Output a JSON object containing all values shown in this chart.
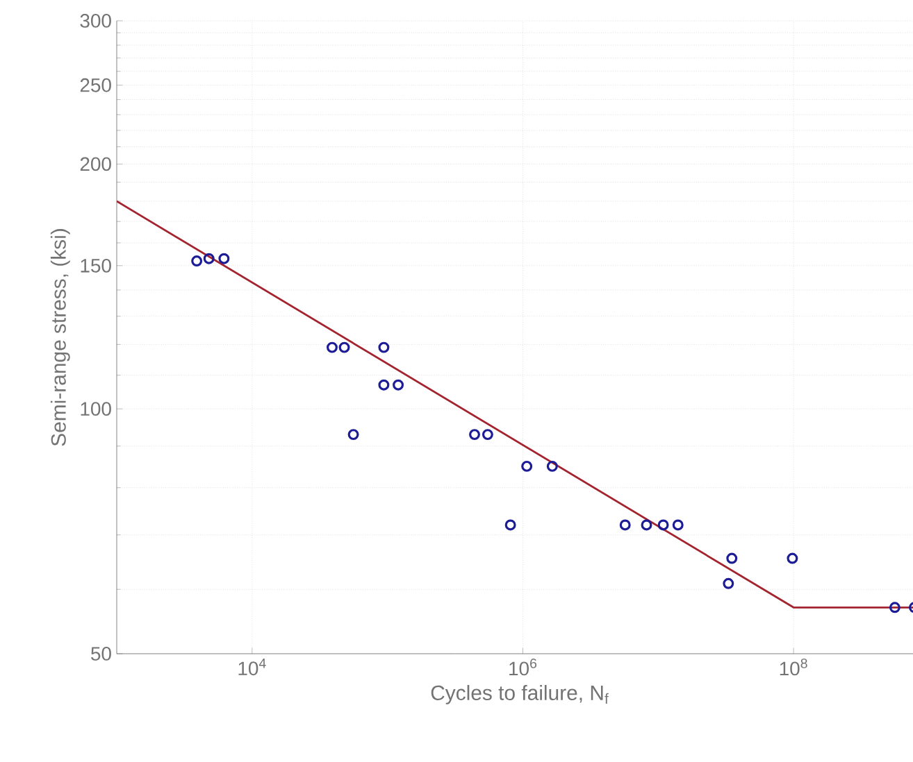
{
  "chart_data": {
    "type": "scatter",
    "xlabel": "Cycles to failure, N$_{f}$",
    "ylabel": "Semi-range stress, (ksi)",
    "log": "xy",
    "grid": true,
    "marker": "circle",
    "xlim": [
      1000,
      900000000
    ],
    "ylim": [
      50,
      300
    ],
    "xticks": [
      {
        "value": 10000,
        "label": "10$^{4}$"
      },
      {
        "value": 1000000,
        "label": "10$^{6}$"
      },
      {
        "value": 100000000,
        "label": "10$^{8}$"
      }
    ],
    "yticks": [
      50,
      100,
      150,
      200,
      250,
      300
    ],
    "series": [
      {
        "color": "#1c1c96",
        "x": [
          3900,
          4800,
          6200,
          39000,
          48000,
          94000,
          94000,
          120000,
          56000,
          440000,
          550000,
          1070000,
          1650000,
          810000,
          5700000,
          8200000,
          10900000,
          14000000,
          35000000,
          33000000,
          98000000,
          560000000,
          780000000
        ],
        "values": [
          152,
          153,
          153,
          119,
          119,
          119,
          107,
          107,
          93,
          93,
          93,
          85,
          85,
          72,
          72,
          72,
          72,
          72,
          65.5,
          61,
          65.5,
          57,
          57
        ]
      },
      {
        "type": "line",
        "color": "#a3232e",
        "line_style": "solid",
        "marker": "none",
        "x": [
          1000,
          100000000,
          900000000
        ],
        "values": [
          180,
          57,
          57
        ]
      }
    ]
  }
}
